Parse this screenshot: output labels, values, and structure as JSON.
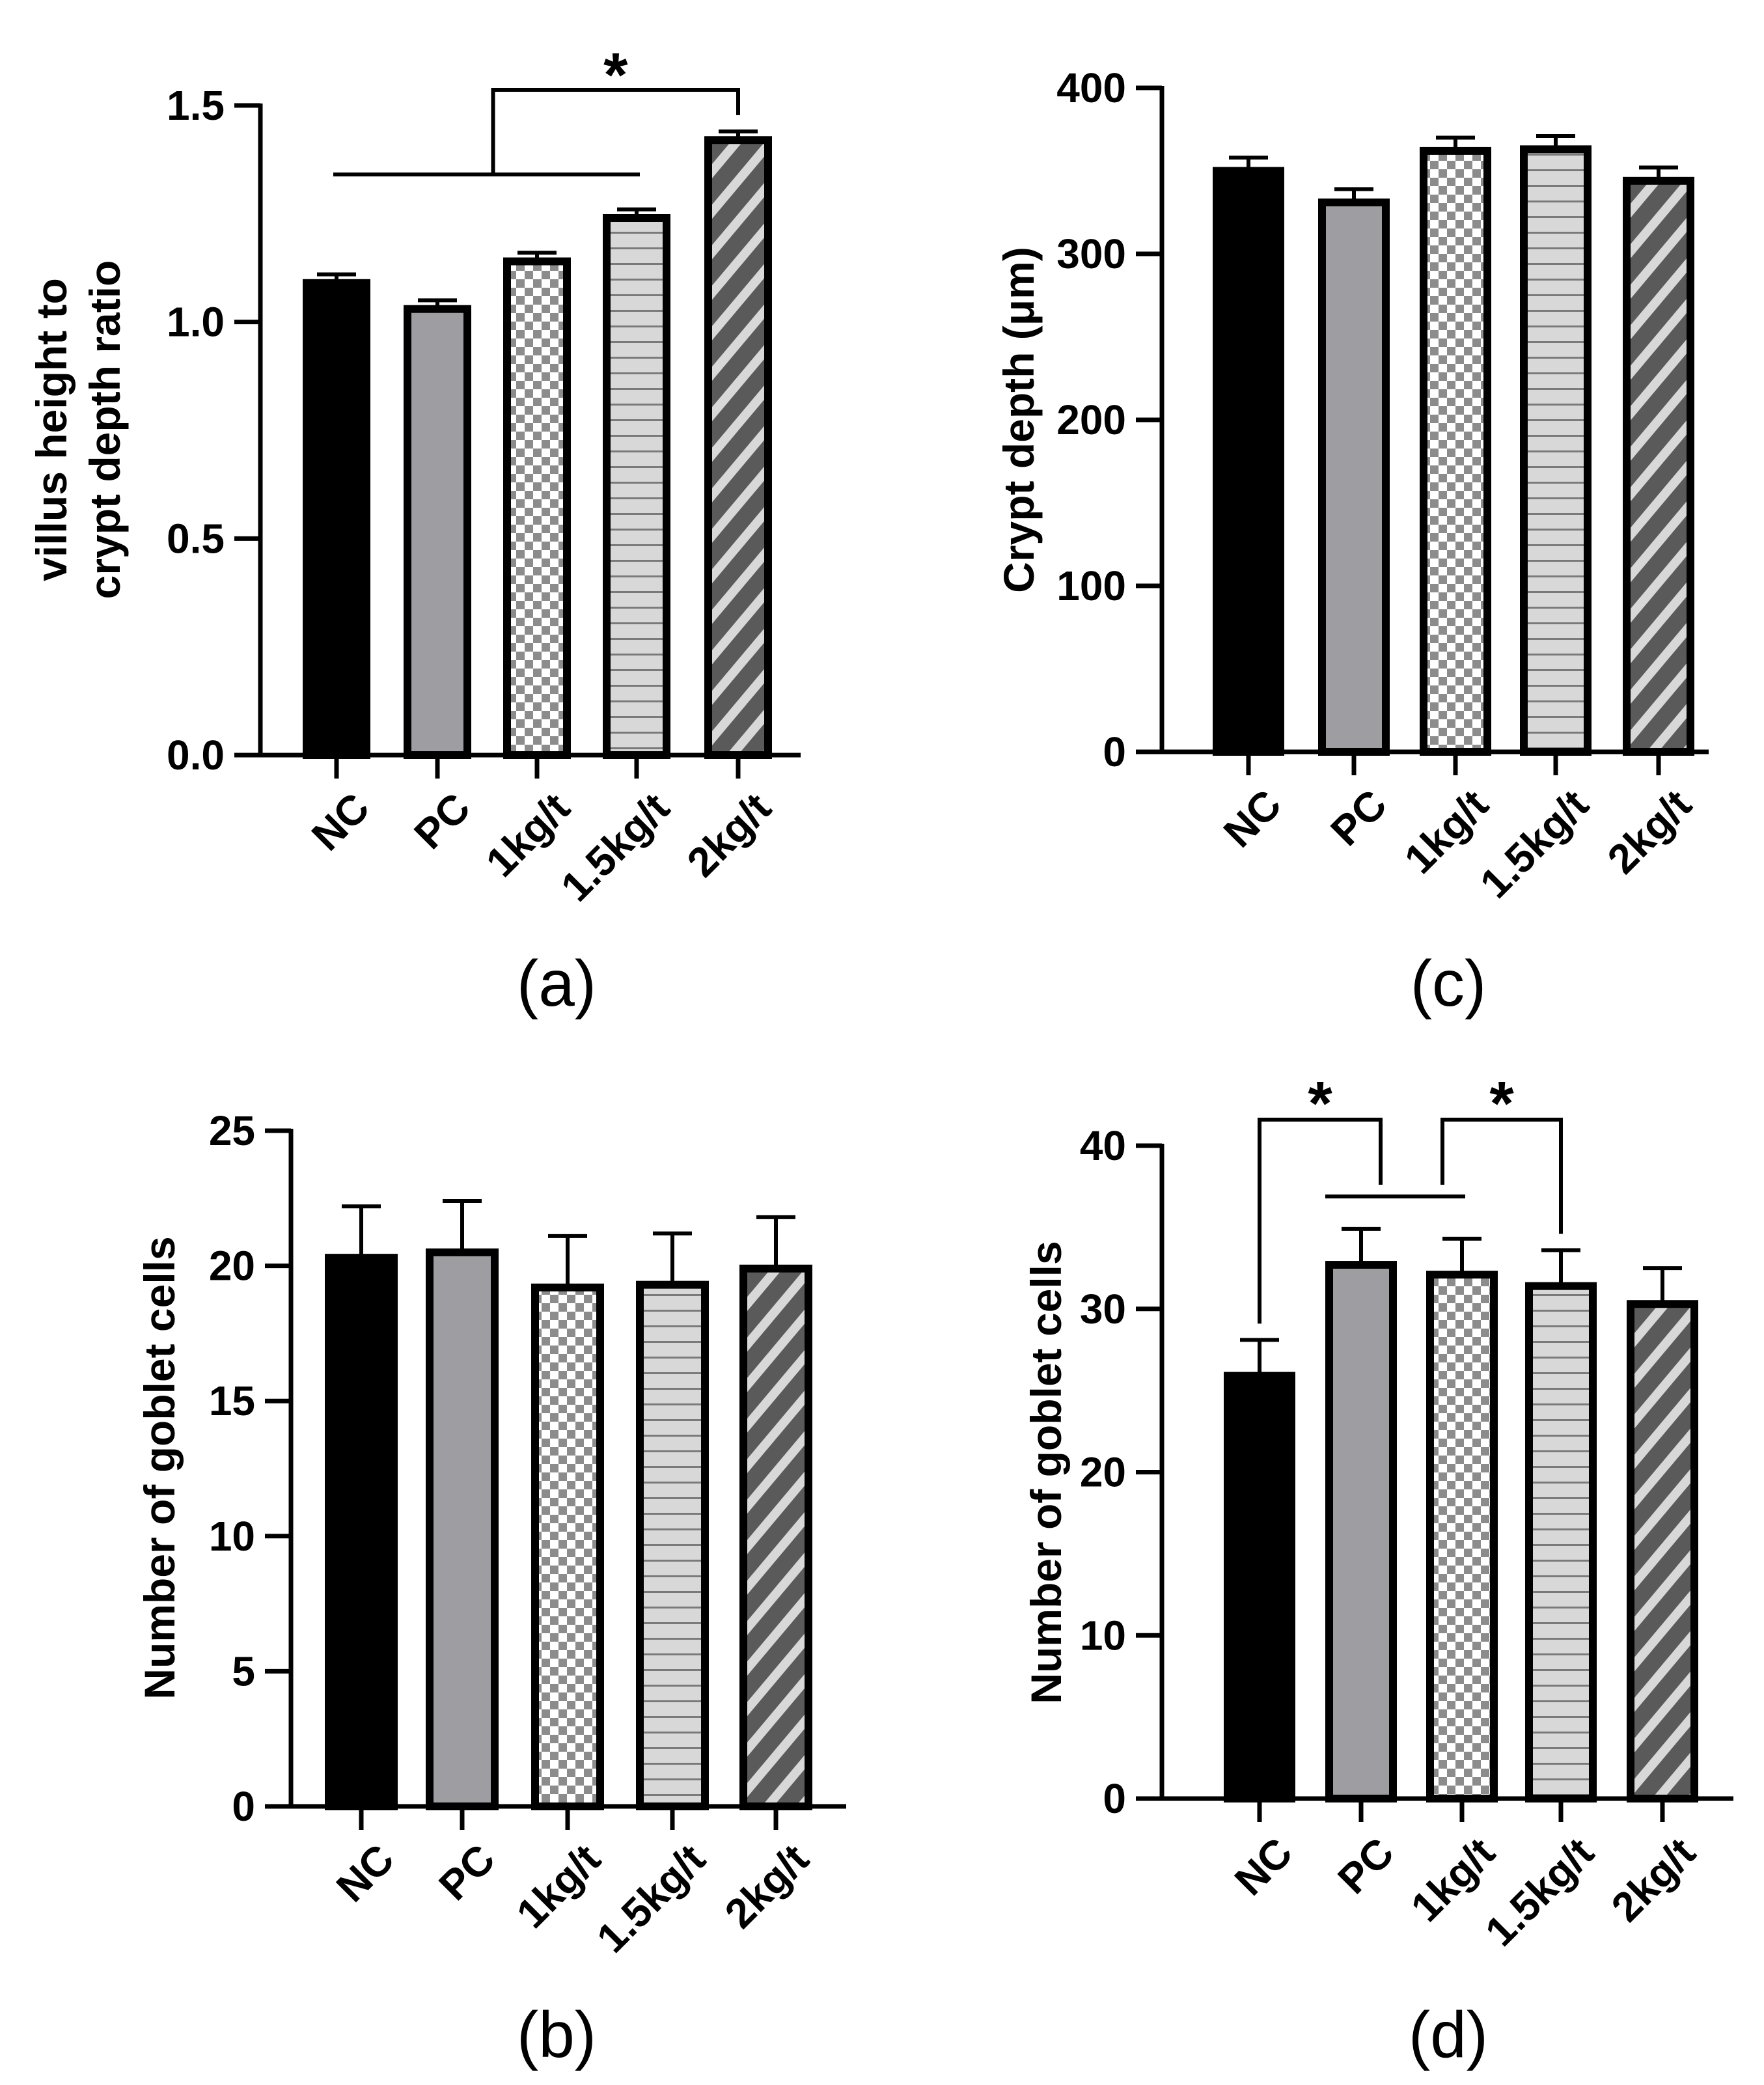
{
  "chart_data": [
    {
      "type": "bar",
      "panel_label": "(a)",
      "categories": [
        "NC",
        "PC",
        "1kg/t",
        "1.5kg/t",
        "2kg/t"
      ],
      "values": [
        1.09,
        1.03,
        1.14,
        1.24,
        1.42
      ],
      "errors": [
        0.02,
        0.02,
        0.02,
        0.02,
        0.02
      ],
      "ylabel_lines": [
        "villus height to",
        "crypt depth ratio"
      ],
      "ylim": [
        0,
        1.5
      ],
      "yticks": [
        0,
        0.5,
        1.0,
        1.5
      ],
      "ytick_labels": [
        "0.0",
        "0.5",
        "1.0",
        "1.5"
      ],
      "significance": [
        {
          "text": "*",
          "kind": "group-vs-bar",
          "group": [
            0,
            3
          ],
          "target": 4
        }
      ]
    },
    {
      "type": "bar",
      "panel_label": "(b)",
      "categories": [
        "NC",
        "PC",
        "1kg/t",
        "1.5kg/t",
        "2kg/t"
      ],
      "values": [
        20.3,
        20.5,
        19.2,
        19.3,
        19.9
      ],
      "errors": [
        1.9,
        1.9,
        1.9,
        1.9,
        1.9
      ],
      "ylabel_lines": [
        "Number of goblet cells"
      ],
      "ylim": [
        0,
        25
      ],
      "yticks": [
        0,
        5,
        10,
        15,
        20,
        25
      ],
      "ytick_labels": [
        "0",
        "5",
        "10",
        "15",
        "20",
        "25"
      ],
      "significance": []
    },
    {
      "type": "bar",
      "panel_label": "(c)",
      "categories": [
        "NC",
        "PC",
        "1kg/t",
        "1.5kg/t",
        "2kg/t"
      ],
      "values": [
        350,
        331,
        362,
        363,
        344
      ],
      "errors": [
        8,
        8,
        8,
        8,
        8
      ],
      "ylabel_lines": [
        "Crypt depth (μm)"
      ],
      "ylim": [
        0,
        400
      ],
      "yticks": [
        0,
        100,
        200,
        300,
        400
      ],
      "ytick_labels": [
        "0",
        "100",
        "200",
        "300",
        "400"
      ],
      "significance": []
    },
    {
      "type": "bar",
      "panel_label": "(d)",
      "categories": [
        "NC",
        "PC",
        "1kg/t",
        "1.5kg/t",
        "2kg/t"
      ],
      "values": [
        25.9,
        32.7,
        32.1,
        31.4,
        30.3
      ],
      "errors": [
        2.2,
        2.2,
        2.2,
        2.2,
        2.2
      ],
      "ylabel_lines": [
        "Number of goblet cells"
      ],
      "ylim": [
        0,
        40
      ],
      "yticks": [
        0,
        10,
        20,
        30,
        40
      ],
      "ytick_labels": [
        "0",
        "10",
        "20",
        "30",
        "40"
      ],
      "significance": [
        {
          "text": "*",
          "kind": "bar-vs-group",
          "target": 0,
          "group": [
            1,
            2
          ]
        },
        {
          "text": "*",
          "kind": "group-vs-bar",
          "group": [
            1,
            2
          ],
          "target": 3
        }
      ]
    }
  ],
  "bar_styles": [
    {
      "name": "solid-black",
      "fill": "#000000"
    },
    {
      "name": "solid-gray",
      "fill": "#9e9ea2"
    },
    {
      "name": "checker",
      "fill_a": "#ffffff",
      "fill_b": "#8c8c8c"
    },
    {
      "name": "horizontal-lines",
      "fill": "#d8d8d8",
      "line": "#7a7a7a"
    },
    {
      "name": "diagonal-stripes",
      "fill_a": "#5a5a5a",
      "fill_b": "#d8d8d8"
    }
  ]
}
